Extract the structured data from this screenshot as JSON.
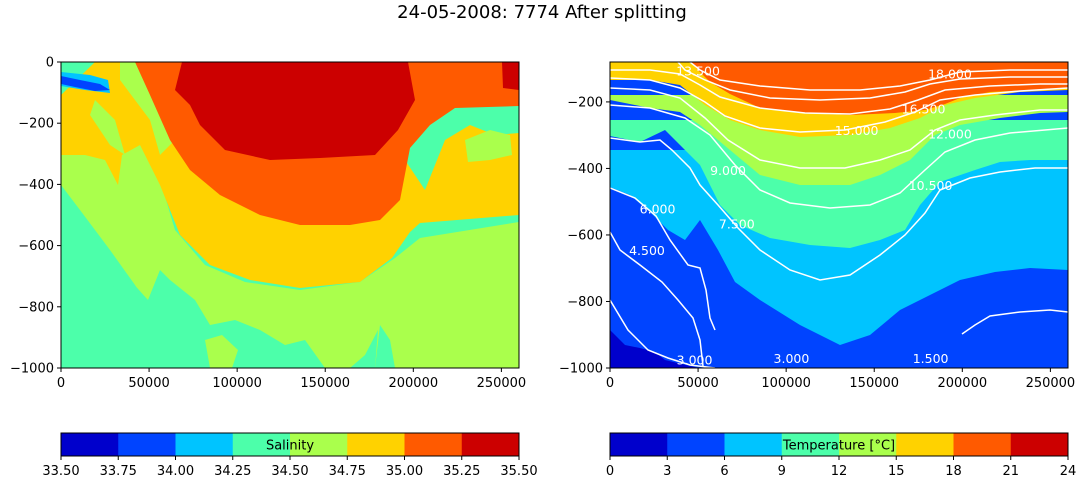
{
  "figure": {
    "title": "24-05-2008: 7774 After splitting"
  },
  "chart_data": [
    {
      "type": "heatmap",
      "panel": "left",
      "xlim": [
        0,
        260000
      ],
      "ylim": [
        -1000,
        0
      ],
      "x_ticks": [
        0,
        50000,
        100000,
        150000,
        200000,
        250000
      ],
      "y_ticks": [
        0,
        -200,
        -400,
        -600,
        -800,
        -1000
      ],
      "grid": false,
      "colorbar": {
        "label": "Salinity",
        "levels": [
          33.5,
          33.75,
          34.0,
          34.25,
          34.5,
          34.75,
          35.0,
          35.25,
          35.5
        ],
        "tick_labels": [
          "33.50",
          "33.75",
          "34.00",
          "34.25",
          "34.50",
          "34.75",
          "35.00",
          "35.25",
          "35.50"
        ],
        "colors": [
          "#0000cc",
          "#0044ff",
          "#00c4ff",
          "#4cffaa",
          "#aaff4c",
          "#ffd200",
          "#ff5a00",
          "#cc0000"
        ]
      },
      "contour_labels": []
    },
    {
      "type": "heatmap",
      "panel": "right",
      "xlim": [
        0,
        260000
      ],
      "ylim": [
        -1000,
        -80
      ],
      "x_ticks": [
        0,
        50000,
        100000,
        150000,
        200000,
        250000
      ],
      "y_ticks": [
        -200,
        -400,
        -600,
        -800,
        -1000
      ],
      "grid": false,
      "colorbar": {
        "label": "Temperature [°C]",
        "levels": [
          0,
          3,
          6,
          9,
          12,
          15,
          18,
          21,
          24
        ],
        "tick_labels": [
          "0",
          "3",
          "6",
          "9",
          "12",
          "15",
          "18",
          "21",
          "24"
        ],
        "colors": [
          "#0000cc",
          "#0044ff",
          "#00c4ff",
          "#4cffaa",
          "#aaff4c",
          "#ffd200",
          "#ff5a00",
          "#cc0000"
        ]
      },
      "contour_labels": [
        {
          "text": "3.000",
          "x": 48000,
          "y": -990
        },
        {
          "text": "3.000",
          "x": 103000,
          "y": -985
        },
        {
          "text": "1.500",
          "x": 182000,
          "y": -985
        },
        {
          "text": "4.500",
          "x": 21000,
          "y": -660
        },
        {
          "text": "6.000",
          "x": 27000,
          "y": -535
        },
        {
          "text": "7.500",
          "x": 72000,
          "y": -580
        },
        {
          "text": "9.000",
          "x": 67000,
          "y": -420
        },
        {
          "text": "10.500",
          "x": 182000,
          "y": -465
        },
        {
          "text": "12.000",
          "x": 193000,
          "y": -310
        },
        {
          "text": "13.500",
          "x": 50000,
          "y": -120
        },
        {
          "text": "15.000",
          "x": 140000,
          "y": -300
        },
        {
          "text": "16.500",
          "x": 178000,
          "y": -235
        },
        {
          "text": "18.000",
          "x": 193000,
          "y": -130
        }
      ]
    }
  ]
}
